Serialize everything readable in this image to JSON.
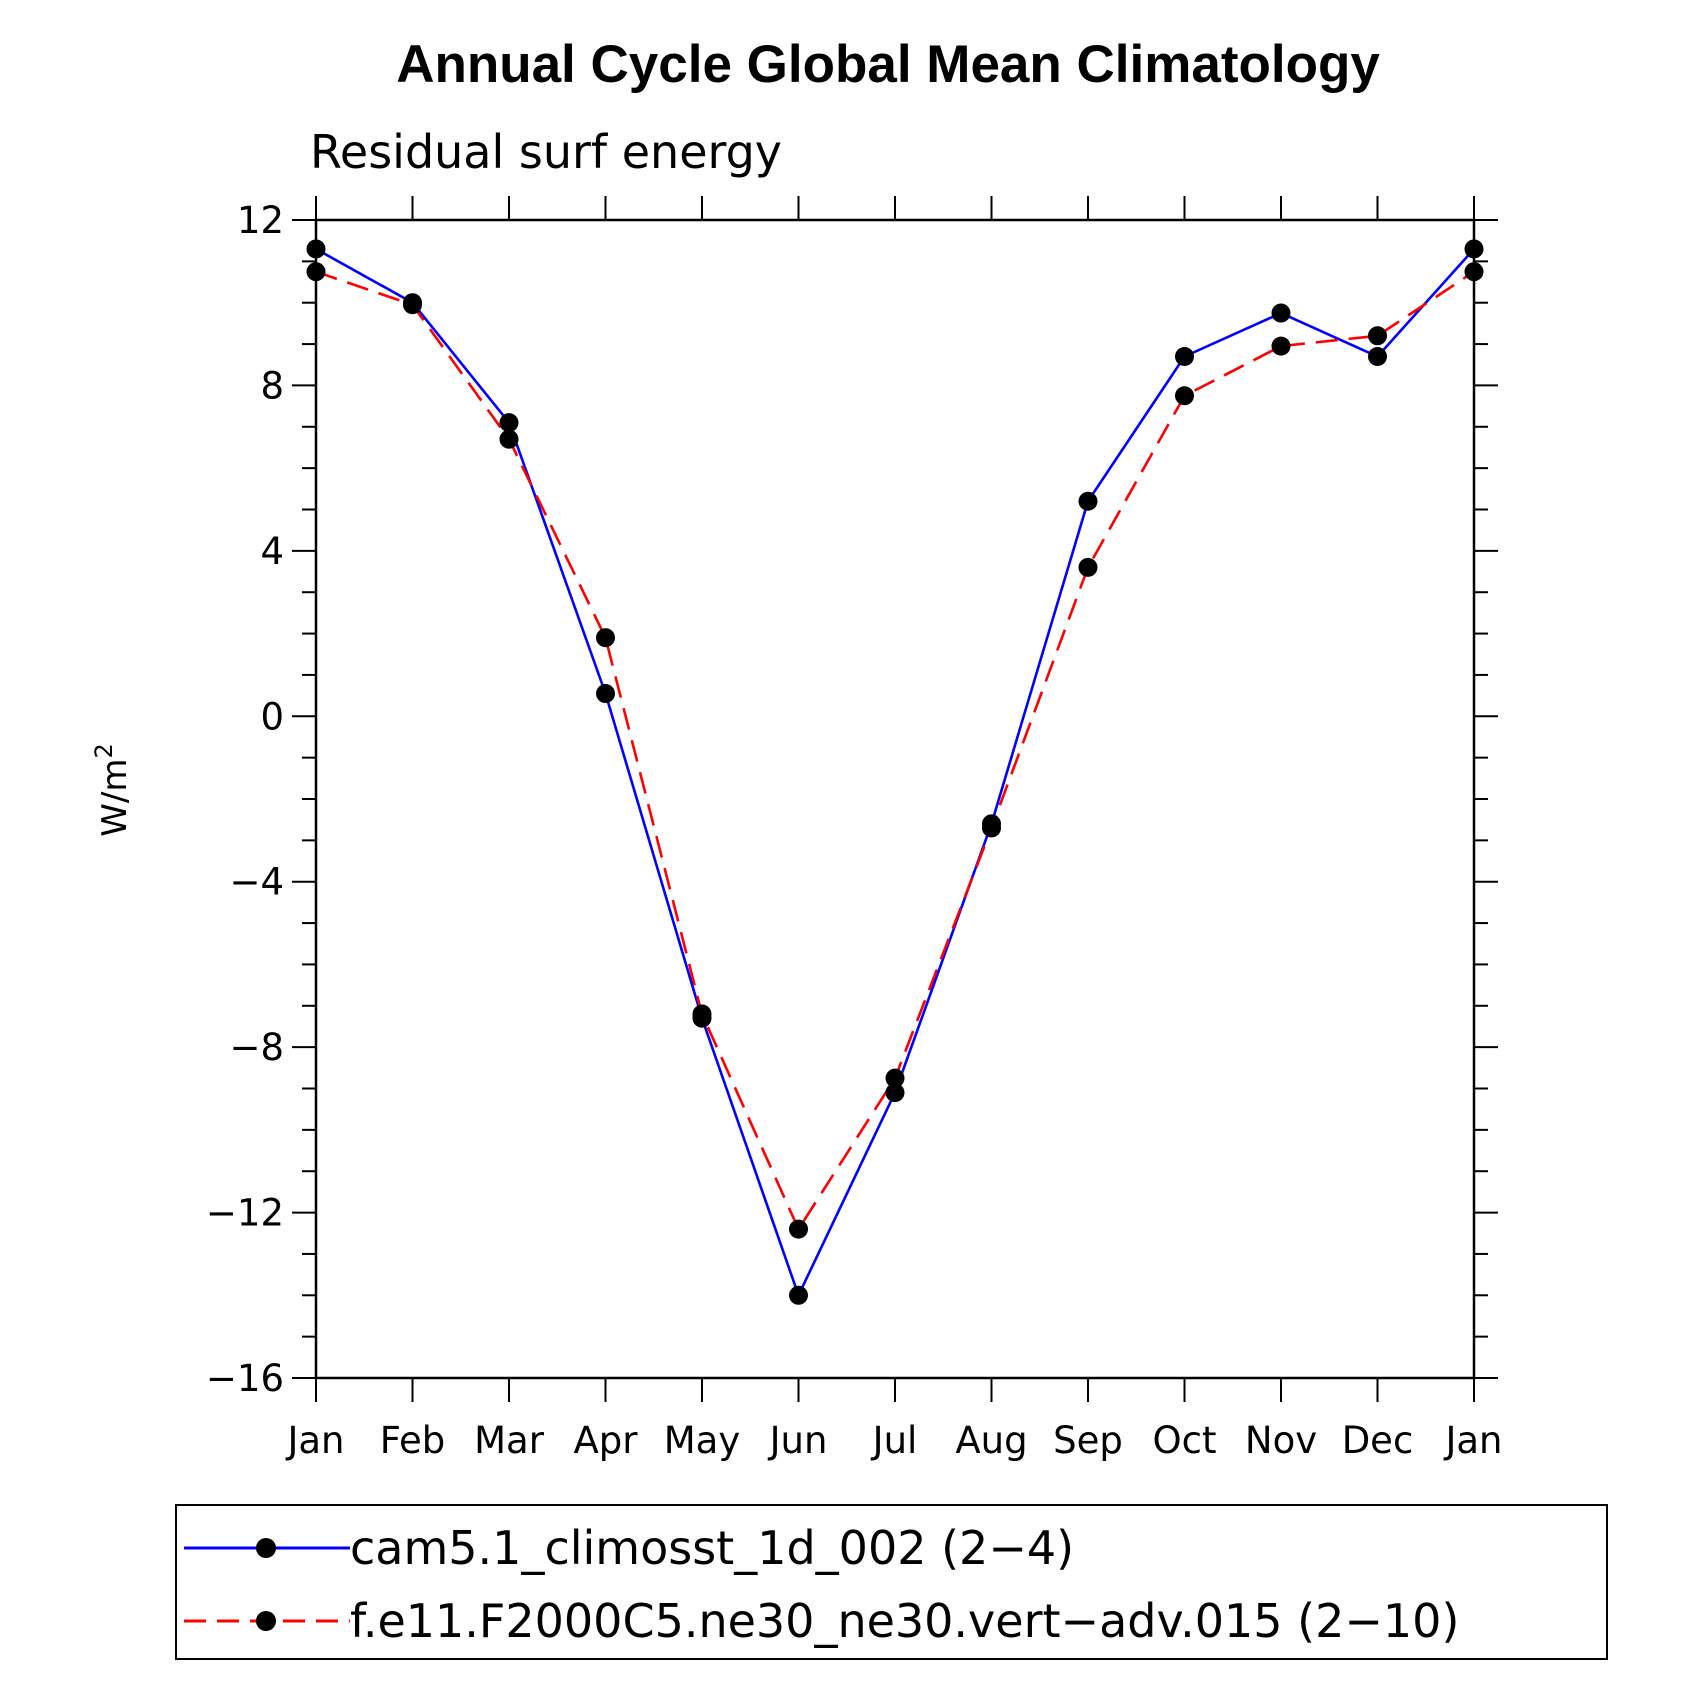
{
  "chart_data": {
    "type": "line",
    "title": "Annual Cycle Global Mean Climatology",
    "subtitle": "Residual surf energy",
    "ylabel": "W/m",
    "ylabel_superscript": "2",
    "xlabel": "",
    "categories": [
      "Jan",
      "Feb",
      "Mar",
      "Apr",
      "May",
      "Jun",
      "Jul",
      "Aug",
      "Sep",
      "Oct",
      "Nov",
      "Dec",
      "Jan"
    ],
    "ylim": [
      -16,
      12
    ],
    "yticks": [
      12,
      8,
      4,
      0,
      -4,
      -8,
      -12,
      -16
    ],
    "ytick_labels": [
      "12",
      "8",
      "4",
      "0",
      "−4",
      "−8",
      "−12",
      "−16"
    ],
    "series": [
      {
        "name": "cam5.1_climosst_1d_002 (2−4)",
        "color": "#0000ff",
        "dash": "solid",
        "values": [
          11.3,
          10.0,
          7.1,
          0.55,
          -7.3,
          -14.0,
          -9.1,
          -2.6,
          5.2,
          8.7,
          9.75,
          8.7,
          11.3
        ]
      },
      {
        "name": "f.e11.F2000C5.ne30_ne30.vert−adv.015 (2−10)",
        "color": "#ff0000",
        "dash": "dashed",
        "values": [
          10.75,
          9.95,
          6.7,
          1.9,
          -7.2,
          -12.4,
          -8.75,
          -2.7,
          3.6,
          7.75,
          8.95,
          9.2,
          10.75
        ]
      }
    ],
    "legend_position": "bottom",
    "grid": false
  }
}
